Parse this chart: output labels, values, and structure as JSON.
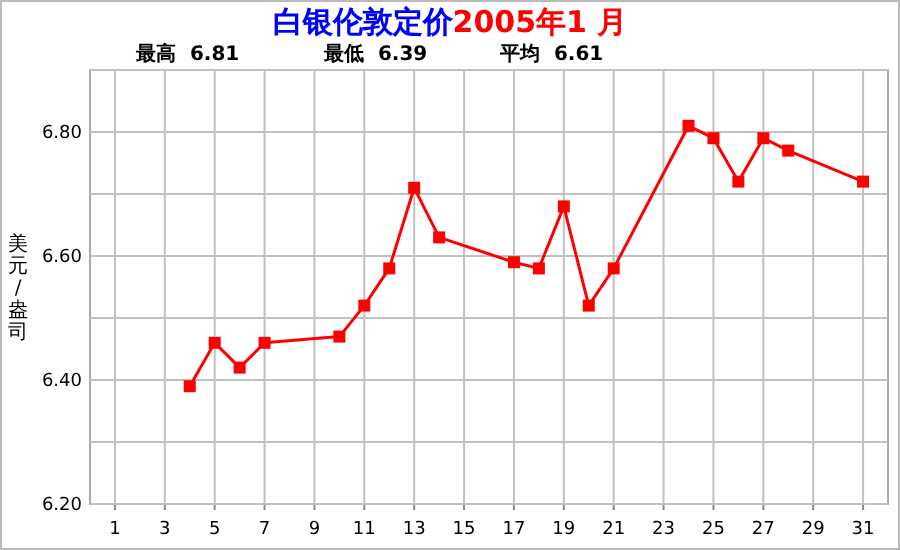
{
  "chart_data": {
    "type": "line",
    "title": "白银伦敦定价",
    "subtitle": "2005年1 月",
    "ylabel": "美元/盎司",
    "annotations": [
      "最高  6.81",
      "最低  6.39",
      "平均  6.61"
    ],
    "x": [
      4,
      5,
      6,
      7,
      10,
      11,
      12,
      13,
      14,
      17,
      18,
      19,
      20,
      21,
      24,
      25,
      26,
      27,
      28,
      31
    ],
    "series": [
      {
        "color": "#ff0000",
        "values": [
          6.39,
          6.46,
          6.42,
          6.46,
          6.47,
          6.52,
          6.58,
          6.71,
          6.63,
          6.59,
          6.58,
          6.68,
          6.52,
          6.58,
          6.81,
          6.79,
          6.72,
          6.79,
          6.77,
          6.72
        ]
      }
    ],
    "xlim": [
      0,
      32
    ],
    "ylim": [
      6.2,
      6.9
    ],
    "xticks": [
      1,
      3,
      5,
      7,
      9,
      11,
      13,
      15,
      17,
      19,
      21,
      23,
      25,
      27,
      29,
      31
    ],
    "yticks": [
      {
        "value": 6.2,
        "label": "6.20"
      },
      {
        "value": 6.3,
        "label": null
      },
      {
        "value": 6.4,
        "label": "6.40"
      },
      {
        "value": 6.5,
        "label": null
      },
      {
        "value": 6.6,
        "label": "6.60"
      },
      {
        "value": 6.7,
        "label": null
      },
      {
        "value": 6.8,
        "label": "6.80"
      },
      {
        "value": 6.9,
        "label": null
      }
    ],
    "grid": true,
    "marker": "square",
    "line_style": "solid"
  }
}
